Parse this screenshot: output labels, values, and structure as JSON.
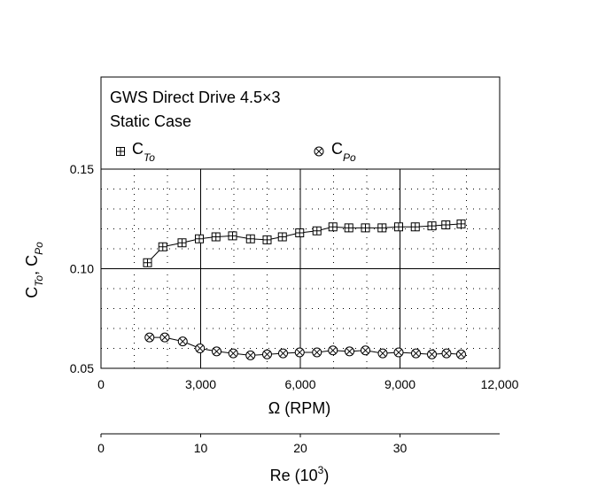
{
  "chart_data": {
    "type": "line",
    "title": "GWS Direct Drive 4.5×3",
    "subtitle": "Static Case",
    "xlabel": {
      "main": "Ω (RPM)"
    },
    "x2label": {
      "main": "Re (10",
      "sup": "3",
      "end": ")"
    },
    "ylabel": {
      "c1": "C",
      "s1": "To",
      "sep": ", ",
      "c2": "C",
      "s2": "Po"
    },
    "xlim": [
      0,
      12000
    ],
    "ylim": [
      0.05,
      0.15
    ],
    "x2lim": [
      0,
      40
    ],
    "x_ticks": [
      "0",
      "3,000",
      "6,000",
      "9,000",
      "12,000"
    ],
    "y_ticks": [
      "0.05",
      "0.10",
      "0.15"
    ],
    "x2_ticks": [
      "0",
      "10",
      "20",
      "30"
    ],
    "grid": true,
    "series": [
      {
        "name": {
          "main": "C",
          "sub": "To"
        },
        "marker": "boxed-plus",
        "x": [
          1400,
          1860,
          2440,
          2960,
          3460,
          3960,
          4500,
          5000,
          5460,
          5980,
          6500,
          6980,
          7460,
          7960,
          8460,
          8960,
          9460,
          9960,
          10380,
          10840
        ],
        "y": [
          0.103,
          0.111,
          0.113,
          0.115,
          0.116,
          0.1165,
          0.115,
          0.1145,
          0.116,
          0.118,
          0.119,
          0.121,
          0.1205,
          0.1205,
          0.1205,
          0.121,
          0.121,
          0.1215,
          0.122,
          0.1225
        ]
      },
      {
        "name": {
          "main": "C",
          "sub": "Po"
        },
        "marker": "circled-x",
        "x": [
          1460,
          1920,
          2460,
          2980,
          3480,
          3980,
          4500,
          5000,
          5480,
          5980,
          6500,
          6980,
          7480,
          7960,
          8480,
          8960,
          9480,
          9960,
          10400,
          10840
        ],
        "y": [
          0.0655,
          0.0655,
          0.0635,
          0.06,
          0.0585,
          0.0575,
          0.0565,
          0.057,
          0.0575,
          0.058,
          0.058,
          0.059,
          0.0585,
          0.059,
          0.0575,
          0.058,
          0.0575,
          0.057,
          0.0575,
          0.057
        ]
      }
    ]
  }
}
